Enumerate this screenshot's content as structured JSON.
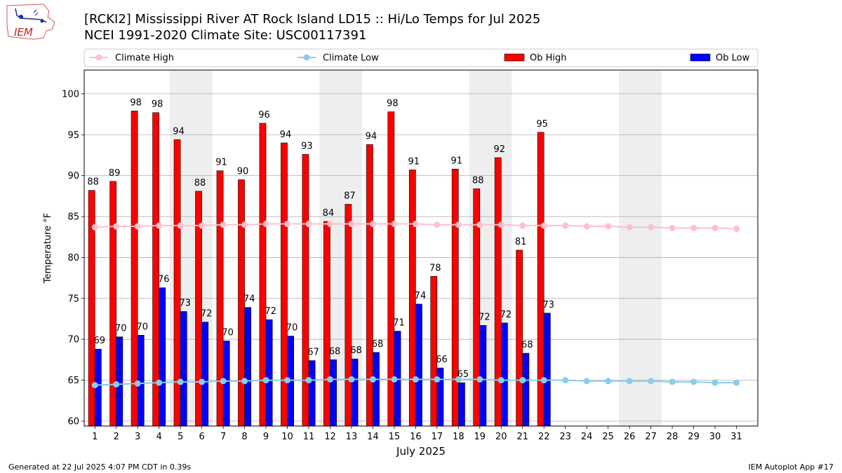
{
  "header": {
    "title_line1": "[RCKI2] Mississippi River  AT Rock Island LD15 :: Hi/Lo Temps for Jul 2025",
    "title_line2": "NCEI 1991-2020 Climate Site: USC00117391",
    "logo_text": "IEM"
  },
  "footer": {
    "left": "Generated at 22 Jul 2025 4:07 PM CDT in 0.39s",
    "right": "IEM Autoplot App #17"
  },
  "chart_data": {
    "type": "bar",
    "xlabel": "July 2025",
    "ylabel": "Temperature °F",
    "ylim": [
      59.4,
      102.9
    ],
    "yticks": [
      60,
      65,
      70,
      75,
      80,
      85,
      90,
      95,
      100
    ],
    "grid": "y",
    "legend_placement": "top",
    "weekend_days": [
      5,
      6,
      12,
      13,
      19,
      20,
      26,
      27
    ],
    "days": [
      1,
      2,
      3,
      4,
      5,
      6,
      7,
      8,
      9,
      10,
      11,
      12,
      13,
      14,
      15,
      16,
      17,
      18,
      19,
      20,
      21,
      22,
      23,
      24,
      25,
      26,
      27,
      28,
      29,
      30,
      31
    ],
    "series": [
      {
        "name": "Climate High",
        "kind": "line",
        "color": "#ffc0cb",
        "values": [
          83.7,
          83.8,
          83.8,
          83.9,
          83.9,
          83.9,
          84.0,
          84.0,
          84.1,
          84.1,
          84.1,
          84.1,
          84.1,
          84.1,
          84.1,
          84.1,
          84.0,
          84.0,
          84.0,
          84.0,
          83.9,
          83.9,
          83.9,
          83.8,
          83.8,
          83.7,
          83.7,
          83.6,
          83.6,
          83.6,
          83.5
        ]
      },
      {
        "name": "Climate Low",
        "kind": "line",
        "color": "#87ceeb",
        "values": [
          64.4,
          64.5,
          64.6,
          64.7,
          64.8,
          64.8,
          64.9,
          64.9,
          65.0,
          65.0,
          65.0,
          65.1,
          65.1,
          65.1,
          65.1,
          65.1,
          65.1,
          65.1,
          65.1,
          65.0,
          65.0,
          65.0,
          65.0,
          64.9,
          64.9,
          64.9,
          64.9,
          64.8,
          64.8,
          64.7,
          64.7
        ]
      },
      {
        "name": "Ob High",
        "kind": "bar",
        "color": "#ff0000",
        "values": [
          88.2,
          89.3,
          97.9,
          97.7,
          94.4,
          88.1,
          90.6,
          89.5,
          96.4,
          94.0,
          92.6,
          84.4,
          86.5,
          93.8,
          97.8,
          90.7,
          77.7,
          90.8,
          88.4,
          92.2,
          80.9,
          95.3
        ],
        "labels": [
          "88",
          "89",
          "98",
          "98",
          "94",
          "88",
          "91",
          "90",
          "96",
          "94",
          "93",
          "84",
          "87",
          "94",
          "98",
          "91",
          "78",
          "91",
          "88",
          "92",
          "81",
          "95"
        ]
      },
      {
        "name": "Ob Low",
        "kind": "bar",
        "color": "#0000ff",
        "values": [
          68.8,
          70.3,
          70.5,
          76.3,
          73.4,
          72.1,
          69.8,
          73.9,
          72.4,
          70.4,
          67.4,
          67.5,
          67.6,
          68.4,
          71.0,
          74.3,
          66.5,
          64.7,
          71.7,
          72.0,
          68.3,
          73.2
        ],
        "labels": [
          "69",
          "70",
          "70",
          "76",
          "73",
          "72",
          "70",
          "74",
          "72",
          "70",
          "67",
          "68",
          "68",
          "68",
          "71",
          "74",
          "66",
          "65",
          "72",
          "72",
          "68",
          "73"
        ]
      }
    ]
  }
}
